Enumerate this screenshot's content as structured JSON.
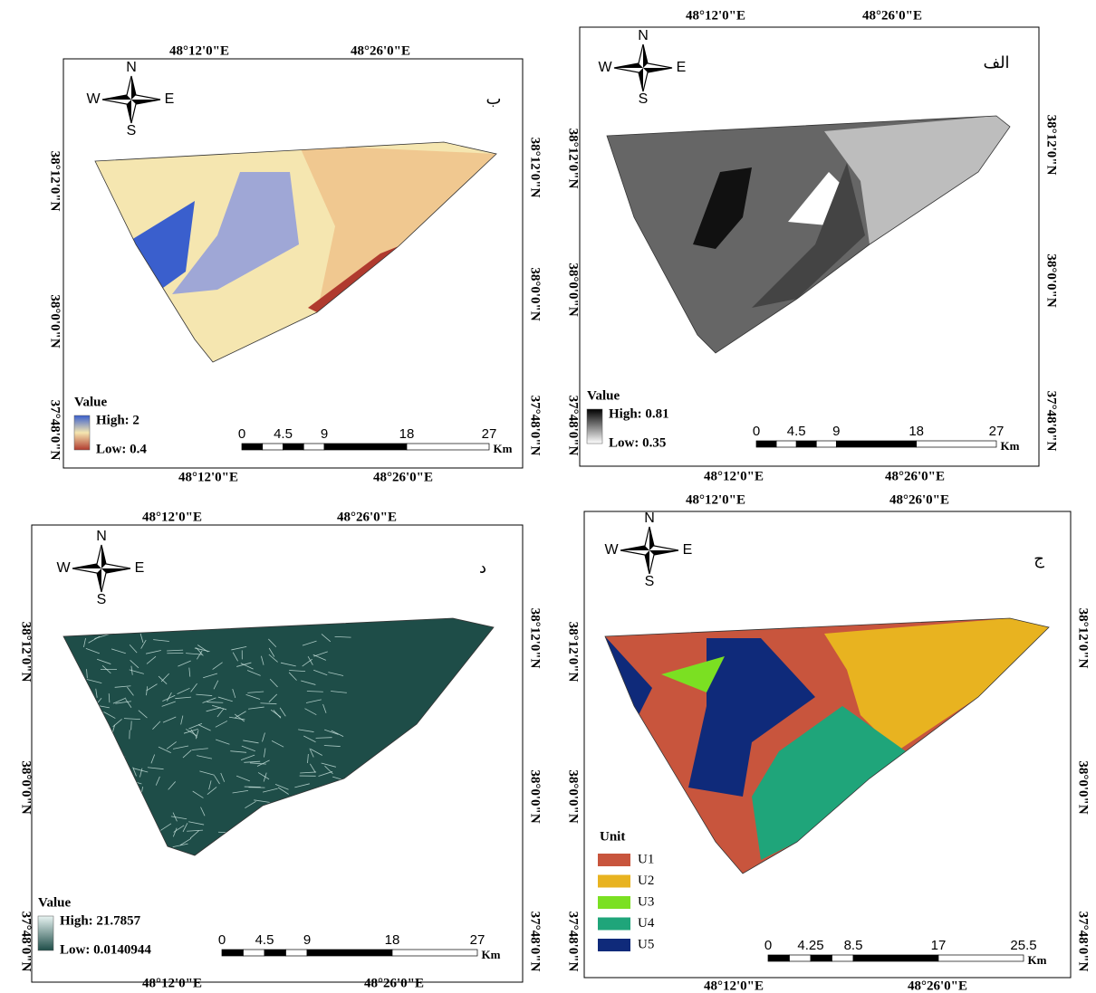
{
  "compass": {
    "n": "N",
    "e": "E",
    "s": "S",
    "w": "W"
  },
  "panels": [
    {
      "letter": "ب",
      "lon_top": [
        "48°12'0\"E",
        "48°26'0\"E"
      ],
      "lon_bottom": [
        "48°12'0\"E",
        "48°26'0\"E"
      ],
      "lat_left": [
        "38°12'0\"N",
        "38°0'0\"N",
        "37°48'0\"N"
      ],
      "lat_right": [
        "38°12'0\"N",
        "38°0'0\"N",
        "37°48'0\"N"
      ],
      "legend": {
        "title": "Value",
        "high": "High: 2",
        "low": "Low: 0.4"
      },
      "scale": {
        "ticks": [
          0,
          4.5,
          9,
          18,
          27
        ],
        "unit": "Km"
      }
    },
    {
      "letter": "الف",
      "lon_top": [
        "48°12'0\"E",
        "48°26'0\"E"
      ],
      "lon_bottom": [
        "48°12'0\"E",
        "48°26'0\"E"
      ],
      "lat_left": [
        "38°12'0\"N",
        "38°0'0\"N",
        "37°48'0\"N"
      ],
      "lat_right": [
        "38°12'0\"N",
        "38°0'0\"N",
        "37°48'0\"N"
      ],
      "legend": {
        "title": "Value",
        "high": "High: 0.81",
        "low": "Low: 0.35"
      },
      "scale": {
        "ticks": [
          0,
          4.5,
          9,
          18,
          27
        ],
        "unit": "Km"
      }
    },
    {
      "letter": "د",
      "lon_top": [
        "48°12'0\"E",
        "48°26'0\"E"
      ],
      "lon_bottom": [
        "48°12'0\"E",
        "48°26'0\"E"
      ],
      "lat_left": [
        "38°12'0\"N",
        "38°0'0\"N",
        "37°48'0\"N"
      ],
      "lat_right": [
        "38°12'0\"N",
        "38°0'0\"N",
        "37°48'0\"N"
      ],
      "legend": {
        "title": "Value",
        "high": "High: 21.7857",
        "low": "Low: 0.0140944"
      },
      "scale": {
        "ticks": [
          0,
          4.5,
          9,
          18,
          27
        ],
        "unit": "Km"
      }
    },
    {
      "letter": "ج",
      "lon_top": [
        "48°12'0\"E",
        "48°26'0\"E"
      ],
      "lon_bottom": [
        "48°12'0\"E",
        "48°26'0\"E"
      ],
      "lat_left": [
        "38°12'0\"N",
        "38°0'0\"N",
        "37°48'0\"N"
      ],
      "lat_right": [
        "38°12'0\"N",
        "38°0'0\"N",
        "37°48'0\"N"
      ],
      "legend": {
        "title": "Unit",
        "items": [
          {
            "label": "U1",
            "color": "#c8553d"
          },
          {
            "label": "U2",
            "color": "#e8b320"
          },
          {
            "label": "U3",
            "color": "#7be022"
          },
          {
            "label": "U4",
            "color": "#1fa57a"
          },
          {
            "label": "U5",
            "color": "#0f2a7a"
          }
        ]
      },
      "scale": {
        "ticks": [
          0,
          4.25,
          8.5,
          17,
          25.5
        ],
        "unit": "Km"
      }
    }
  ]
}
